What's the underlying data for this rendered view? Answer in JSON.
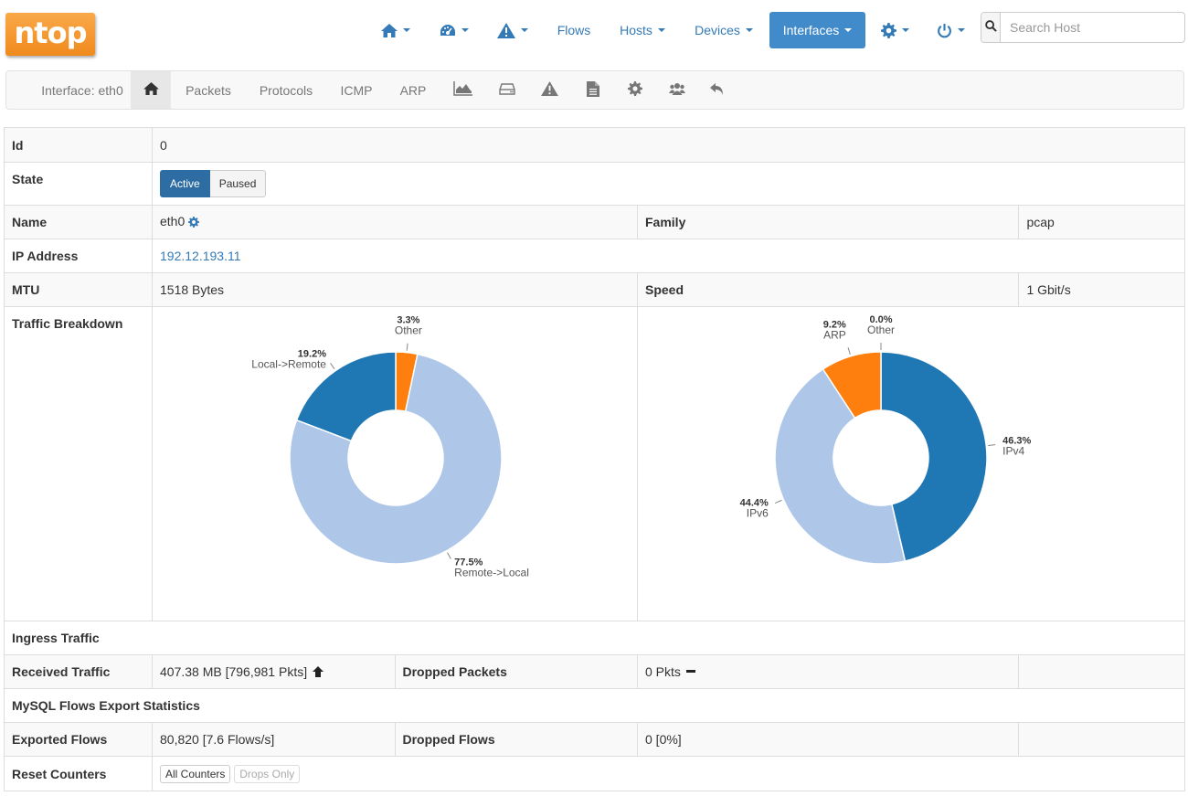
{
  "logo": {
    "text": "ntop"
  },
  "navbar": {
    "items": [
      {
        "name": "home",
        "icon": "home-icon",
        "label": ""
      },
      {
        "name": "dashboard",
        "icon": "dashboard-icon",
        "label": ""
      },
      {
        "name": "alerts",
        "icon": "warning-icon",
        "label": ""
      },
      {
        "name": "flows",
        "label": "Flows"
      },
      {
        "name": "hosts",
        "label": "Hosts"
      },
      {
        "name": "devices",
        "label": "Devices"
      },
      {
        "name": "interfaces",
        "label": "Interfaces"
      },
      {
        "name": "settings",
        "icon": "gear-icon",
        "label": ""
      },
      {
        "name": "power",
        "icon": "power-icon",
        "label": ""
      }
    ],
    "search_placeholder": "Search Host"
  },
  "subnav": {
    "brand": "Interface: eth0",
    "packets": "Packets",
    "protocols": "Protocols",
    "icmp": "ICMP",
    "arp": "ARP"
  },
  "table": {
    "id": {
      "label": "Id",
      "value": "0"
    },
    "state": {
      "label": "State",
      "active": "Active",
      "paused": "Paused"
    },
    "name": {
      "label": "Name",
      "value": "eth0"
    },
    "family": {
      "label": "Family",
      "value": "pcap"
    },
    "ip": {
      "label": "IP Address",
      "value": "192.12.193.11"
    },
    "mtu": {
      "label": "MTU",
      "value": "1518 Bytes"
    },
    "speed": {
      "label": "Speed",
      "value": "1 Gbit/s"
    },
    "traffic_breakdown": {
      "label": "Traffic Breakdown"
    },
    "ingress": {
      "label": "Ingress Traffic"
    },
    "received": {
      "label": "Received Traffic",
      "value": "407.38 MB [796,981 Pkts]"
    },
    "dropped_packets": {
      "label": "Dropped Packets",
      "value": "0 Pkts"
    },
    "mysql": {
      "label": "MySQL Flows Export Statistics"
    },
    "exported": {
      "label": "Exported Flows",
      "value": "80,820 [7.6 Flows/s]"
    },
    "dropped_flows": {
      "label": "Dropped Flows",
      "value": "0 [0%]"
    },
    "reset": {
      "label": "Reset Counters",
      "all": "All Counters",
      "drops": "Drops Only"
    }
  },
  "colors": {
    "dark_blue": "#1f77b4",
    "light_blue": "#aec7e8",
    "orange": "#ff7f0e",
    "link": "#337ab7",
    "nav_active": "#428bca"
  },
  "chart_data": [
    {
      "type": "pie",
      "slices": [
        {
          "name": "Other",
          "value": 3.3,
          "label": "3.3%",
          "color": "#ff7f0e"
        },
        {
          "name": "Remote->Local",
          "value": 77.5,
          "label": "77.5%",
          "color": "#aec7e8"
        },
        {
          "name": "Local->Remote",
          "value": 19.2,
          "label": "19.2%",
          "color": "#1f77b4"
        }
      ]
    },
    {
      "type": "pie",
      "slices": [
        {
          "name": "IPv4",
          "value": 46.3,
          "label": "46.3%",
          "color": "#1f77b4"
        },
        {
          "name": "IPv6",
          "value": 44.4,
          "label": "44.4%",
          "color": "#aec7e8"
        },
        {
          "name": "ARP",
          "value": 9.2,
          "label": "9.2%",
          "color": "#ff7f0e"
        },
        {
          "name": "Other",
          "value": 0.0,
          "label": "0.0%",
          "color": "#2ca02c"
        }
      ]
    }
  ]
}
